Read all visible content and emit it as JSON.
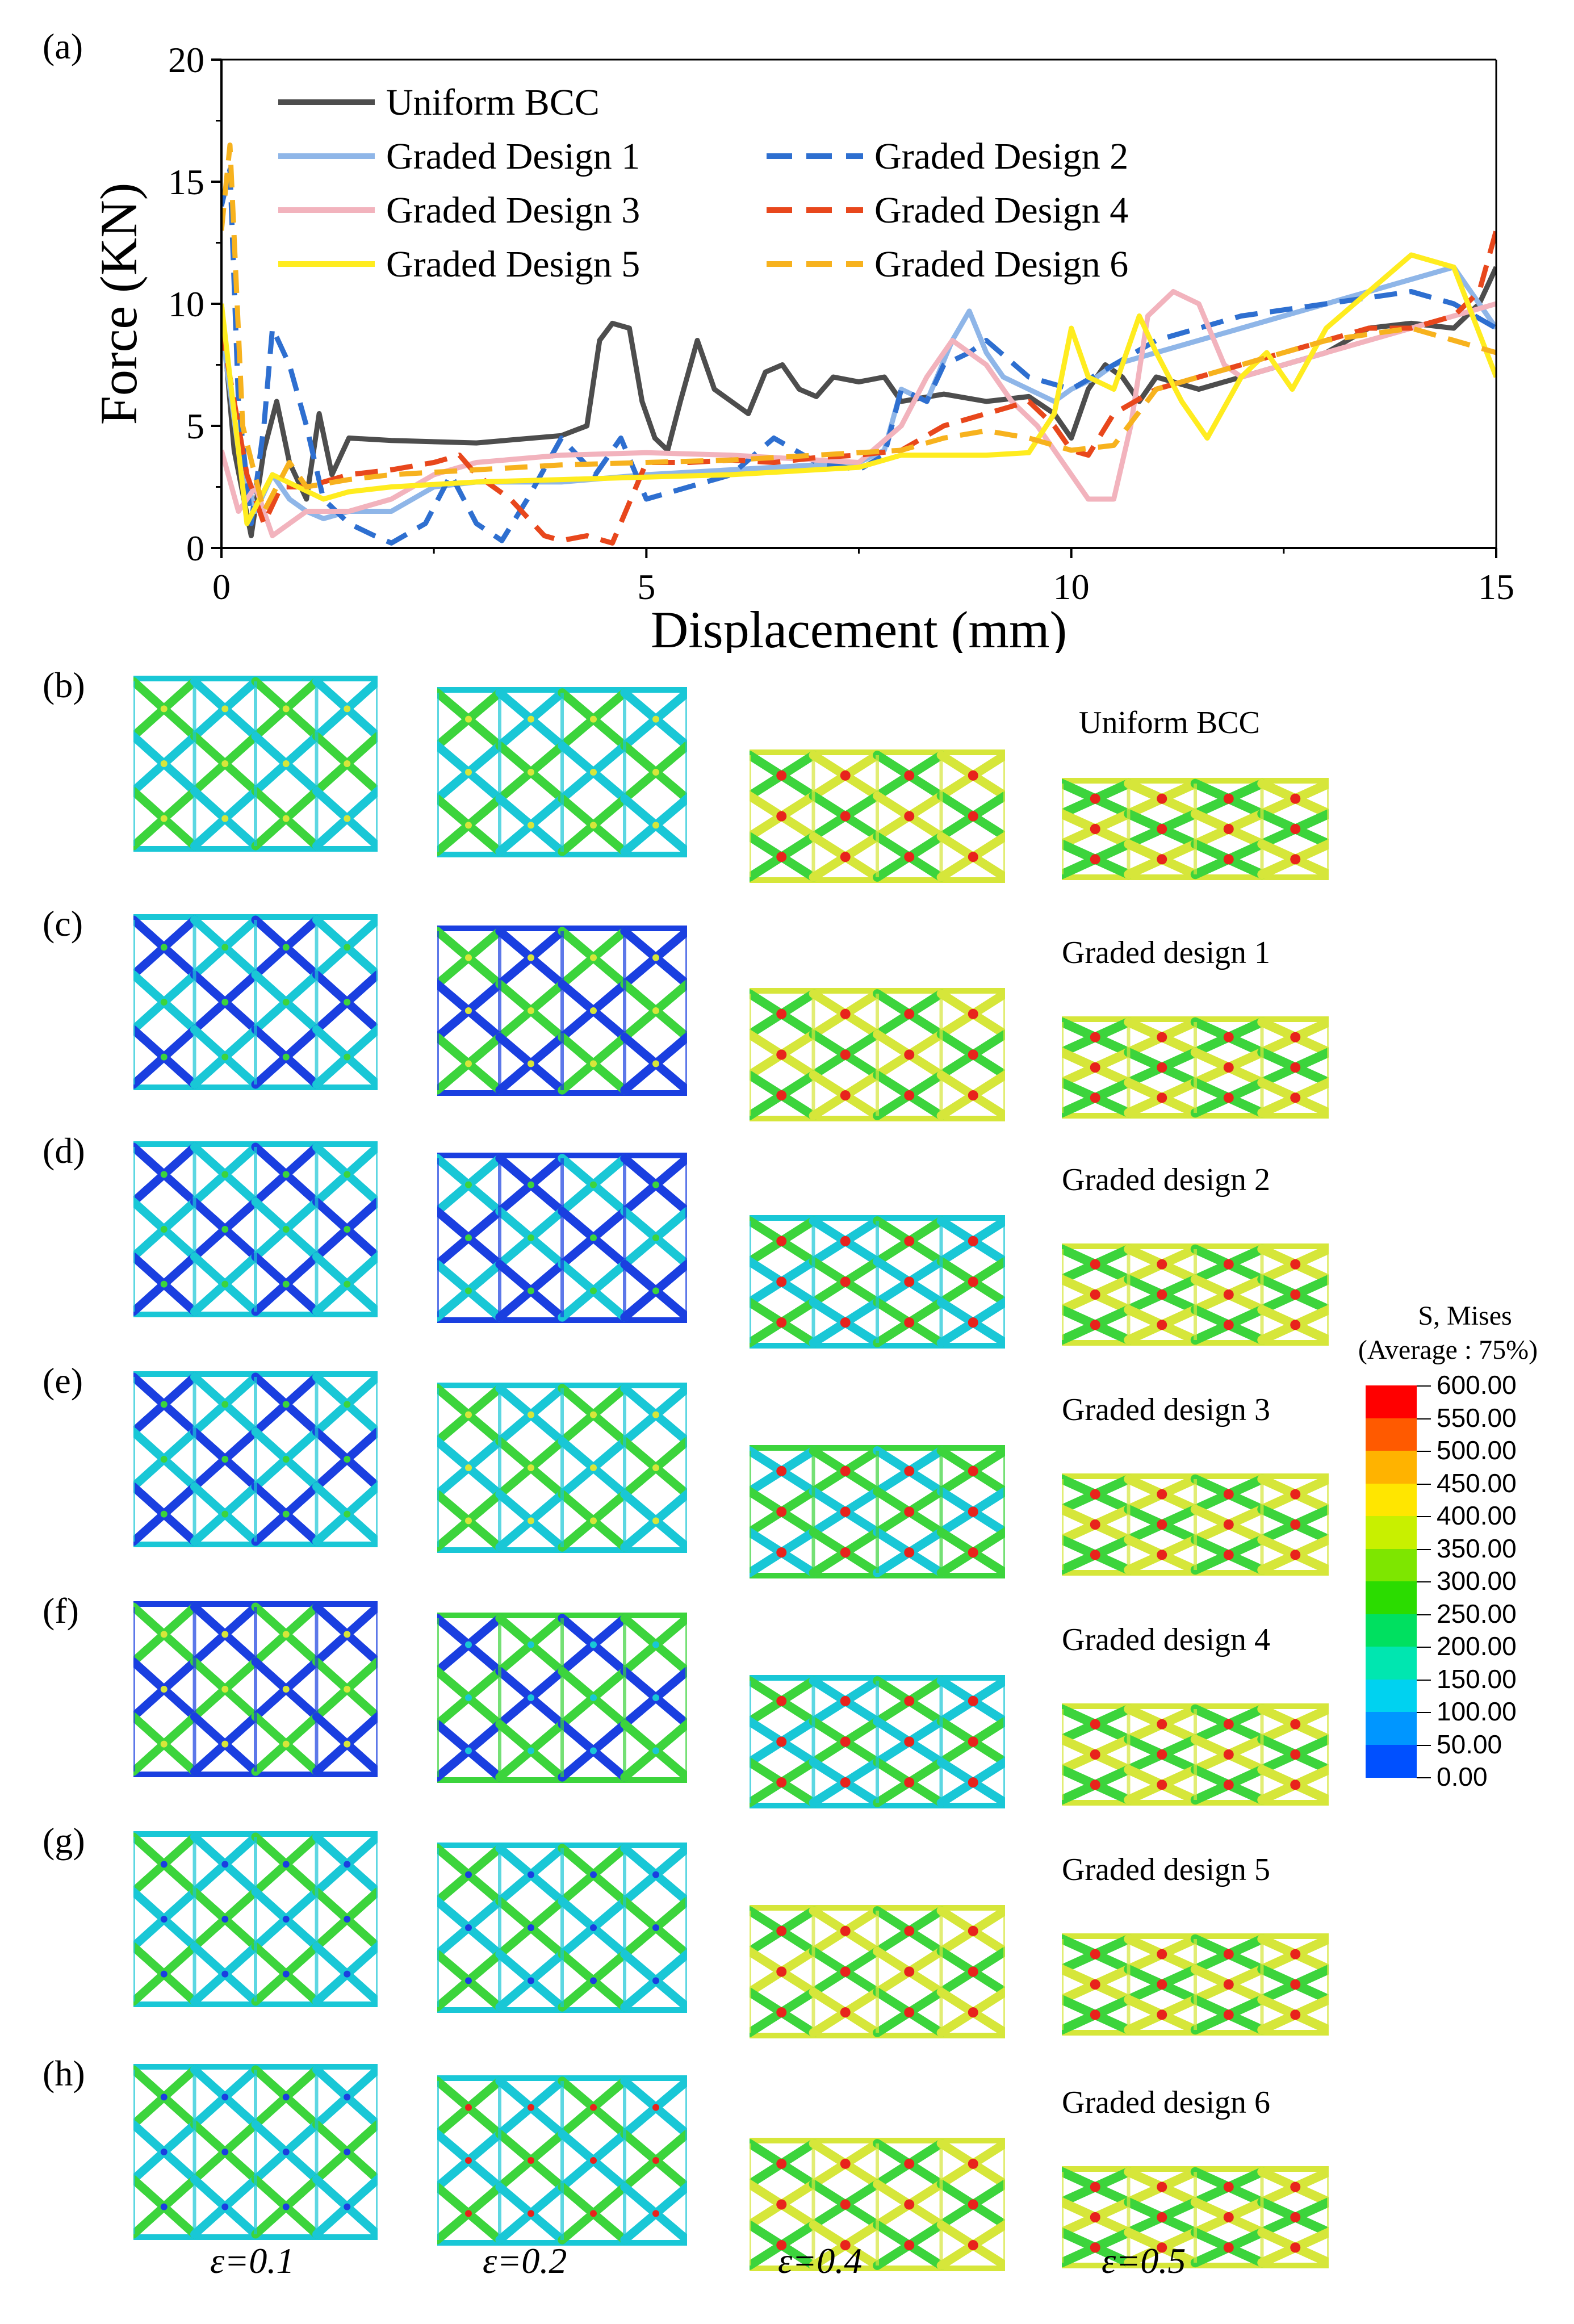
{
  "chart_data": {
    "type": "line",
    "panel_label": "(a)",
    "xlabel": "Displacement (mm)",
    "ylabel": "Force (KN)",
    "xlim": [
      0,
      15
    ],
    "ylim": [
      0,
      20
    ],
    "xticks": [
      0,
      5,
      10,
      15
    ],
    "yticks": [
      0,
      5,
      10,
      15,
      20
    ],
    "legend_position": "top-left",
    "series": [
      {
        "name": "Uniform BCC",
        "color": "#4d4d4d",
        "dash": "solid",
        "x": [
          0,
          0.15,
          0.35,
          0.5,
          0.65,
          0.8,
          1.0,
          1.15,
          1.3,
          1.5,
          2.0,
          3.0,
          4.0,
          4.3,
          4.45,
          4.6,
          4.8,
          4.95,
          5.1,
          5.25,
          5.4,
          5.6,
          5.8,
          6.0,
          6.2,
          6.4,
          6.6,
          6.8,
          7.0,
          7.2,
          7.5,
          7.8,
          8.0,
          8.5,
          9.0,
          9.5,
          9.8,
          10.0,
          10.2,
          10.4,
          10.6,
          10.8,
          11.0,
          11.5,
          12.0,
          12.5,
          13.0,
          13.5,
          14.0,
          14.5,
          14.8,
          15.0
        ],
        "y": [
          10.0,
          4.0,
          0.5,
          4.0,
          6.0,
          3.5,
          2.0,
          5.5,
          3.0,
          4.5,
          4.4,
          4.3,
          4.6,
          5.0,
          8.5,
          9.2,
          9.0,
          6.0,
          4.5,
          4.0,
          6.0,
          8.5,
          6.5,
          6.0,
          5.5,
          7.2,
          7.5,
          6.5,
          6.2,
          7.0,
          6.8,
          7.0,
          6.0,
          6.3,
          6.0,
          6.2,
          5.5,
          4.5,
          6.5,
          7.5,
          7.0,
          6.0,
          7.0,
          6.5,
          7.0,
          7.5,
          8.0,
          9.0,
          9.2,
          9.0,
          10.0,
          11.5
        ]
      },
      {
        "name": "Graded Design 1",
        "color": "#8fb6e8",
        "dash": "solid",
        "x": [
          0,
          0.2,
          0.4,
          0.6,
          0.8,
          1.0,
          1.2,
          1.5,
          2.0,
          2.5,
          3.0,
          4.0,
          5.0,
          6.0,
          7.0,
          7.5,
          7.8,
          8.0,
          8.3,
          8.6,
          8.8,
          9.0,
          9.2,
          9.5,
          9.8,
          10.0,
          10.3,
          10.5,
          11.0,
          11.5,
          12.0,
          12.5,
          13.0,
          13.5,
          14.0,
          14.5,
          15.0
        ],
        "y": [
          9.0,
          4.0,
          1.5,
          3.0,
          2.0,
          1.5,
          1.2,
          1.5,
          1.5,
          2.5,
          2.7,
          2.7,
          3.0,
          3.2,
          3.4,
          3.5,
          4.0,
          6.5,
          6.0,
          8.5,
          9.7,
          8.0,
          7.0,
          6.5,
          6.0,
          6.5,
          7.0,
          7.5,
          8.0,
          8.5,
          9.0,
          9.5,
          10.0,
          10.5,
          11.0,
          11.5,
          9.0
        ]
      },
      {
        "name": "Graded Design 2",
        "color": "#2e6fd0",
        "dash": "dash",
        "x": [
          0,
          0.1,
          0.2,
          0.35,
          0.5,
          0.6,
          0.8,
          1.0,
          1.2,
          1.5,
          1.8,
          2.0,
          2.4,
          2.7,
          3.0,
          3.3,
          3.6,
          4.0,
          4.4,
          4.7,
          5.0,
          5.5,
          6.0,
          6.5,
          7.0,
          7.5,
          7.8,
          8.0,
          8.3,
          8.5,
          8.8,
          9.0,
          9.5,
          10.0,
          10.5,
          11.0,
          12.0,
          13.0,
          14.0,
          14.5,
          15.0
        ],
        "y": [
          14.0,
          15.5,
          6.0,
          1.0,
          5.0,
          9.0,
          7.5,
          5.0,
          2.0,
          1.0,
          0.5,
          0.2,
          1.0,
          3.0,
          1.0,
          0.3,
          2.0,
          4.5,
          3.0,
          4.5,
          2.0,
          2.5,
          3.0,
          4.5,
          3.5,
          3.2,
          3.8,
          6.5,
          6.0,
          7.5,
          8.0,
          8.5,
          7.0,
          6.5,
          7.5,
          8.5,
          9.5,
          10.0,
          10.5,
          10.0,
          9.0
        ]
      },
      {
        "name": "Graded Design 3",
        "color": "#f2b3bd",
        "dash": "solid",
        "x": [
          0,
          0.2,
          0.4,
          0.6,
          0.8,
          1.0,
          1.5,
          2.0,
          2.5,
          3.0,
          4.0,
          5.0,
          6.0,
          7.0,
          7.5,
          8.0,
          8.3,
          8.6,
          9.0,
          9.3,
          9.6,
          10.0,
          10.2,
          10.5,
          10.7,
          10.9,
          11.2,
          11.5,
          11.8,
          12.0,
          12.5,
          13.0,
          13.5,
          14.0,
          14.5,
          15.0
        ],
        "y": [
          4.0,
          1.5,
          2.5,
          0.5,
          1.0,
          1.5,
          1.5,
          2.0,
          3.0,
          3.5,
          3.8,
          3.9,
          3.8,
          3.6,
          3.5,
          5.0,
          7.0,
          8.5,
          7.5,
          6.0,
          5.0,
          3.0,
          2.0,
          2.0,
          5.0,
          9.5,
          10.5,
          10.0,
          7.5,
          7.0,
          7.5,
          8.0,
          8.5,
          9.0,
          9.5,
          10.0
        ]
      },
      {
        "name": "Graded Design 4",
        "color": "#e8471c",
        "dash": "dash",
        "x": [
          0,
          0.3,
          0.5,
          0.7,
          1.0,
          1.5,
          2.0,
          2.5,
          2.8,
          3.0,
          3.4,
          3.8,
          4.0,
          4.3,
          4.6,
          5.0,
          5.5,
          6.0,
          6.5,
          7.0,
          7.5,
          8.0,
          8.5,
          9.0,
          9.5,
          9.8,
          10.0,
          10.2,
          10.5,
          11.0,
          11.5,
          12.0,
          12.5,
          13.0,
          13.5,
          14.0,
          14.5,
          14.8,
          15.0
        ],
        "y": [
          9.0,
          3.0,
          1.0,
          2.5,
          2.5,
          3.0,
          3.2,
          3.5,
          3.8,
          3.0,
          2.0,
          0.5,
          0.3,
          0.5,
          0.2,
          3.5,
          3.5,
          3.6,
          3.5,
          3.7,
          3.8,
          4.0,
          5.0,
          5.5,
          6.0,
          5.0,
          4.0,
          3.8,
          5.5,
          6.5,
          7.0,
          7.5,
          8.0,
          8.5,
          9.0,
          9.0,
          9.5,
          10.5,
          13.0
        ]
      },
      {
        "name": "Graded Design 5",
        "color": "#ffec1f",
        "dash": "solid",
        "x": [
          0,
          0.3,
          0.6,
          0.9,
          1.2,
          1.5,
          2.0,
          3.0,
          4.0,
          5.0,
          6.0,
          7.0,
          7.5,
          8.0,
          8.5,
          9.0,
          9.5,
          9.8,
          10.0,
          10.2,
          10.5,
          10.8,
          11.0,
          11.3,
          11.6,
          12.0,
          12.3,
          12.6,
          13.0,
          13.5,
          14.0,
          14.5,
          15.0
        ],
        "y": [
          10.0,
          1.0,
          3.0,
          2.5,
          2.0,
          2.3,
          2.5,
          2.7,
          2.8,
          2.9,
          3.0,
          3.2,
          3.3,
          3.8,
          3.8,
          3.8,
          3.9,
          5.5,
          9.0,
          7.0,
          6.5,
          9.5,
          8.0,
          6.0,
          4.5,
          7.0,
          8.0,
          6.5,
          9.0,
          10.5,
          12.0,
          11.5,
          7.0
        ]
      },
      {
        "name": "Graded Design 6",
        "color": "#f7b21e",
        "dash": "dash",
        "x": [
          0,
          0.1,
          0.25,
          0.5,
          0.8,
          1.0,
          1.5,
          2.0,
          3.0,
          4.0,
          5.0,
          6.0,
          7.0,
          7.5,
          8.0,
          8.5,
          9.0,
          9.5,
          10.0,
          10.5,
          11.0,
          12.0,
          13.0,
          14.0,
          14.5,
          15.0
        ],
        "y": [
          13.0,
          16.5,
          5.0,
          1.5,
          3.5,
          2.5,
          2.8,
          3.0,
          3.2,
          3.4,
          3.5,
          3.6,
          3.8,
          3.9,
          4.0,
          4.5,
          4.8,
          4.5,
          4.0,
          4.2,
          6.5,
          7.5,
          8.5,
          9.0,
          8.5,
          8.0
        ]
      }
    ]
  },
  "panels": {
    "b": {
      "label": "(b)",
      "title": "Uniform BCC"
    },
    "c": {
      "label": "(c)",
      "title": "Graded design 1"
    },
    "d": {
      "label": "(d)",
      "title": "Graded design 2"
    },
    "e": {
      "label": "(e)",
      "title": "Graded design 3"
    },
    "f": {
      "label": "(f)",
      "title": "Graded design 4"
    },
    "g": {
      "label": "(g)",
      "title": "Graded design 5"
    },
    "h": {
      "label": "(h)",
      "title": "Graded design 6"
    }
  },
  "strains": [
    "ε=0.1",
    "ε=0.2",
    "ε=0.4",
    "ε=0.5"
  ],
  "colorbar": {
    "title_line1": "S, Mises",
    "title_line2": "(Average : 75%)",
    "labels": [
      "600.00",
      "550.00",
      "500.00",
      "450.00",
      "400.00",
      "350.00",
      "300.00",
      "250.00",
      "200.00",
      "150.00",
      "100.00",
      "50.00",
      "0.00"
    ],
    "colors": [
      "#ff0000",
      "#ff5a00",
      "#ffb300",
      "#ffe600",
      "#c8f000",
      "#7ee600",
      "#2bdc00",
      "#00e060",
      "#00e6b0",
      "#00d2f0",
      "#0096ff",
      "#0050ff",
      "#0000ff"
    ]
  },
  "lattice_colors": {
    "blue": "#1a3fe0",
    "cyan": "#19c7d6",
    "green": "#3cd43c",
    "yellow": "#d6e63a",
    "red": "#e8231c"
  }
}
